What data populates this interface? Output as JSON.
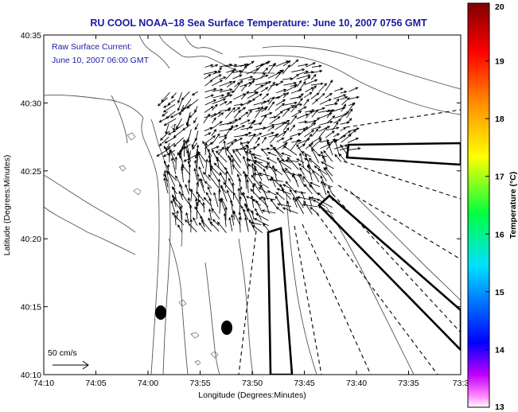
{
  "title": "RU COOL  NOAA–18  Sea Surface Temperature:  June 10, 2007 0756 GMT",
  "annotation": {
    "line1": "Raw Surface Current:",
    "line2": "June 10, 2007 06:00 GMT"
  },
  "scale_label": "50 cm/s",
  "map_data": {
    "x_axis": {
      "label": "Longitude (Degrees:Minutes)",
      "ticks": [
        "74:10",
        "74:05",
        "74:00",
        "73:55",
        "73:50",
        "73:45",
        "73:40",
        "73:35",
        "73:3"
      ]
    },
    "y_axis": {
      "label": "Latitude (Degrees:Minutes)",
      "ticks": [
        "40:35",
        "40:30",
        "40:25",
        "40:20",
        "40:15",
        "40:10"
      ]
    },
    "colorbar": {
      "label": "Temperature (°C)",
      "min": 13,
      "max": 20,
      "ticks": [
        "20",
        "19",
        "18",
        "17",
        "16",
        "15",
        "14",
        "13"
      ],
      "colormap": [
        "#ff00ff",
        "#0000ff",
        "#00ffff",
        "#00ff00",
        "#ffff00",
        "#ff8000",
        "#ff0000",
        "#800000"
      ]
    },
    "current_field_color": "#000000",
    "land_contour_color": "#555555"
  }
}
